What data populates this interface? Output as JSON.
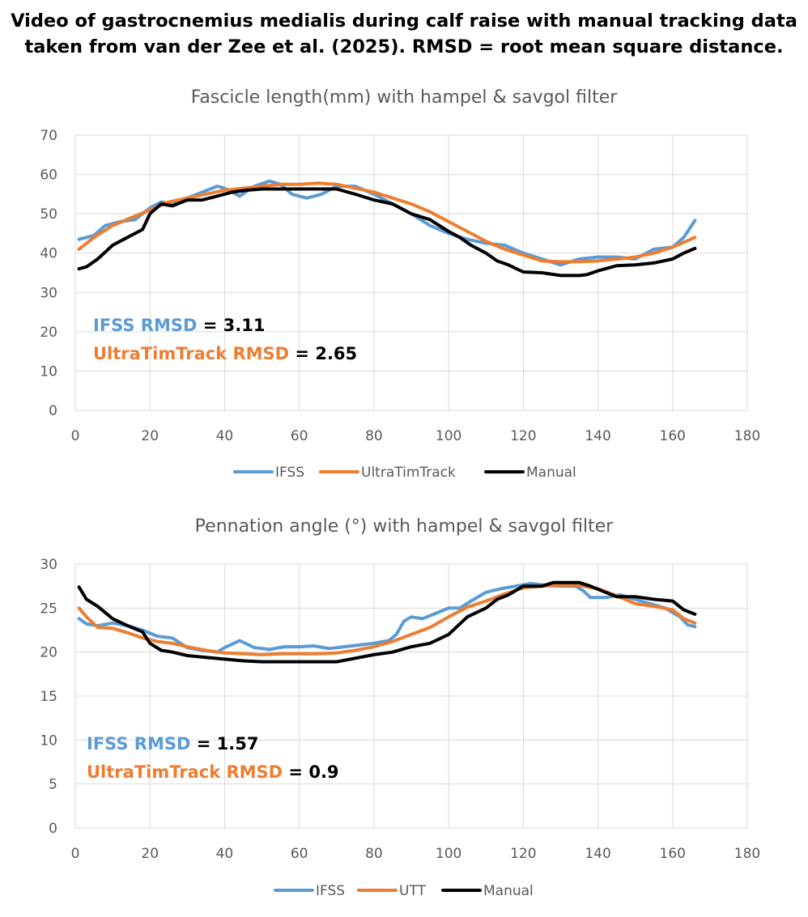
{
  "figure_title_line1": "Video of gastrocnemius medialis during calf raise with manual tracking data",
  "figure_title_line2": "taken from van der Zee et al. (2025). RMSD = root mean square distance.",
  "colors": {
    "ifss": "#5B9BD5",
    "utt": "#ED7D31",
    "manual": "#000000",
    "grid": "#D9D9D9",
    "axis_text": "#595959"
  },
  "chart_data": [
    {
      "type": "line",
      "title": "Fascicle length(mm) with hampel & savgol filter",
      "xlabel": "",
      "ylabel": "",
      "xlim": [
        0,
        180
      ],
      "ylim": [
        0,
        70
      ],
      "xticks": [
        "0",
        "20",
        "40",
        "60",
        "80",
        "100",
        "120",
        "140",
        "160",
        "180"
      ],
      "yticks": [
        "0",
        "10",
        "20",
        "30",
        "40",
        "50",
        "60",
        "70"
      ],
      "legend_position": "bottom",
      "annotations": {
        "ifss_label": "IFSS RMSD",
        "ifss_eq": " = ",
        "ifss_value": "3.11",
        "utt_label": "UltraTimTrack RMSD",
        "utt_eq": " = ",
        "utt_value": "2.65"
      },
      "series": [
        {
          "name": "IFSS",
          "color": "#5B9BD5",
          "x": [
            1,
            5,
            8,
            12,
            16,
            20,
            23,
            26,
            30,
            34,
            38,
            40,
            44,
            48,
            52,
            55,
            58,
            62,
            66,
            70,
            75,
            80,
            85,
            90,
            95,
            100,
            105,
            110,
            115,
            120,
            125,
            130,
            135,
            140,
            145,
            150,
            155,
            160,
            163,
            166
          ],
          "y": [
            43.5,
            44.5,
            47,
            48,
            48.5,
            51.5,
            53,
            52.5,
            54,
            55.5,
            57,
            56.5,
            54.5,
            57,
            58.3,
            57.5,
            55,
            54,
            55,
            57,
            57,
            55,
            52.5,
            50,
            47,
            45,
            43.5,
            42.5,
            42,
            40,
            38.5,
            37,
            38.5,
            39,
            39,
            38.5,
            41,
            41.5,
            44,
            48.3
          ]
        },
        {
          "name": "UltraTimTrack",
          "color": "#ED7D31",
          "x": [
            1,
            5,
            10,
            15,
            20,
            25,
            30,
            35,
            40,
            45,
            50,
            55,
            60,
            65,
            70,
            75,
            80,
            85,
            90,
            95,
            100,
            105,
            110,
            115,
            120,
            125,
            130,
            135,
            140,
            145,
            150,
            155,
            160,
            166
          ],
          "y": [
            41,
            44,
            47,
            49,
            51,
            53,
            54,
            55,
            56,
            56.5,
            57,
            57.5,
            57.5,
            57.8,
            57.5,
            56.5,
            55.5,
            54,
            52.5,
            50.5,
            48,
            45.5,
            43,
            41,
            39.5,
            38,
            37.8,
            37.8,
            38,
            38.5,
            39,
            40,
            41.5,
            44
          ]
        },
        {
          "name": "Manual",
          "color": "#000000",
          "x": [
            1,
            3,
            6,
            10,
            13,
            16,
            18,
            20,
            23,
            26,
            30,
            34,
            38,
            42,
            46,
            50,
            55,
            60,
            65,
            70,
            75,
            80,
            85,
            90,
            95,
            100,
            103,
            106,
            110,
            113,
            116,
            120,
            125,
            130,
            135,
            137,
            140,
            142,
            145,
            150,
            155,
            160,
            163,
            166
          ],
          "y": [
            36,
            36.5,
            38.5,
            42,
            43.5,
            45,
            46,
            50,
            52.5,
            52,
            53.5,
            53.5,
            54.5,
            55.5,
            56,
            56.3,
            56.3,
            56.3,
            56.3,
            56.3,
            55,
            53.5,
            52.5,
            50,
            48.5,
            45.5,
            44,
            42,
            40,
            38,
            37,
            35.2,
            35,
            34.3,
            34.3,
            34.5,
            35.5,
            36,
            36.8,
            37,
            37.5,
            38.5,
            40,
            41.2
          ]
        }
      ]
    },
    {
      "type": "line",
      "title": "Pennation angle (°) with hampel & savgol filter",
      "xlabel": "",
      "ylabel": "",
      "xlim": [
        0,
        180
      ],
      "ylim": [
        0,
        30
      ],
      "xticks": [
        "0",
        "20",
        "40",
        "60",
        "80",
        "100",
        "120",
        "140",
        "160",
        "180"
      ],
      "yticks": [
        "0",
        "5",
        "10",
        "15",
        "20",
        "25",
        "30"
      ],
      "legend_position": "bottom",
      "annotations": {
        "ifss_label": "IFSS RMSD",
        "ifss_eq": " = ",
        "ifss_value": "1.57",
        "utt_label": "UltraTimTrack RMSD",
        "utt_eq": " = ",
        "utt_value": "0.9"
      },
      "series": [
        {
          "name": "IFSS",
          "color": "#5B9BD5",
          "x": [
            1,
            3,
            6,
            10,
            14,
            18,
            22,
            26,
            30,
            34,
            38,
            40,
            44,
            48,
            52,
            56,
            60,
            64,
            68,
            72,
            76,
            80,
            84,
            86,
            88,
            90,
            93,
            96,
            100,
            103,
            106,
            110,
            114,
            118,
            122,
            126,
            130,
            134,
            136,
            138,
            142,
            146,
            150,
            154,
            158,
            162,
            164,
            166
          ],
          "y": [
            23.8,
            23.2,
            23,
            23.3,
            23,
            22.5,
            21.8,
            21.6,
            20.5,
            20.2,
            20,
            20.5,
            21.3,
            20.5,
            20.3,
            20.6,
            20.6,
            20.7,
            20.4,
            20.6,
            20.8,
            21,
            21.3,
            22,
            23.5,
            24,
            23.8,
            24.3,
            25,
            25,
            25.8,
            26.8,
            27.2,
            27.5,
            27.8,
            27.6,
            27.5,
            27.5,
            27,
            26.2,
            26.2,
            26.5,
            26,
            25.5,
            25,
            24,
            23.1,
            22.9
          ]
        },
        {
          "name": "UTT",
          "color": "#ED7D31",
          "x": [
            1,
            3,
            6,
            10,
            14,
            18,
            22,
            26,
            30,
            35,
            40,
            45,
            50,
            55,
            60,
            65,
            70,
            75,
            80,
            85,
            90,
            95,
            100,
            105,
            110,
            115,
            120,
            125,
            130,
            135,
            140,
            145,
            150,
            155,
            160,
            163,
            166
          ],
          "y": [
            25,
            24,
            22.8,
            22.7,
            22.2,
            21.6,
            21.2,
            21,
            20.6,
            20.2,
            19.9,
            19.8,
            19.7,
            19.8,
            19.8,
            19.8,
            19.9,
            20.2,
            20.6,
            21.2,
            22,
            22.8,
            24,
            25.1,
            25.8,
            26.6,
            27.3,
            27.5,
            27.6,
            27.6,
            27.2,
            26.4,
            25.5,
            25.2,
            24.8,
            23.8,
            23.3
          ]
        },
        {
          "name": "Manual",
          "color": "#000000",
          "x": [
            1,
            3,
            6,
            10,
            14,
            18,
            20,
            23,
            26,
            30,
            35,
            40,
            45,
            50,
            55,
            60,
            65,
            70,
            75,
            80,
            85,
            90,
            95,
            100,
            105,
            110,
            113,
            116,
            120,
            125,
            128,
            131,
            135,
            138,
            142,
            145,
            150,
            155,
            160,
            163,
            166
          ],
          "y": [
            27.4,
            26,
            25.2,
            23.8,
            23,
            22.3,
            21,
            20.2,
            20,
            19.6,
            19.4,
            19.2,
            19,
            18.9,
            18.9,
            18.9,
            18.9,
            18.9,
            19.3,
            19.7,
            20,
            20.6,
            21,
            22,
            24,
            25,
            26,
            26.5,
            27.5,
            27.5,
            27.9,
            27.9,
            27.9,
            27.5,
            26.8,
            26.3,
            26.3,
            26,
            25.8,
            24.8,
            24.3
          ]
        }
      ]
    }
  ]
}
